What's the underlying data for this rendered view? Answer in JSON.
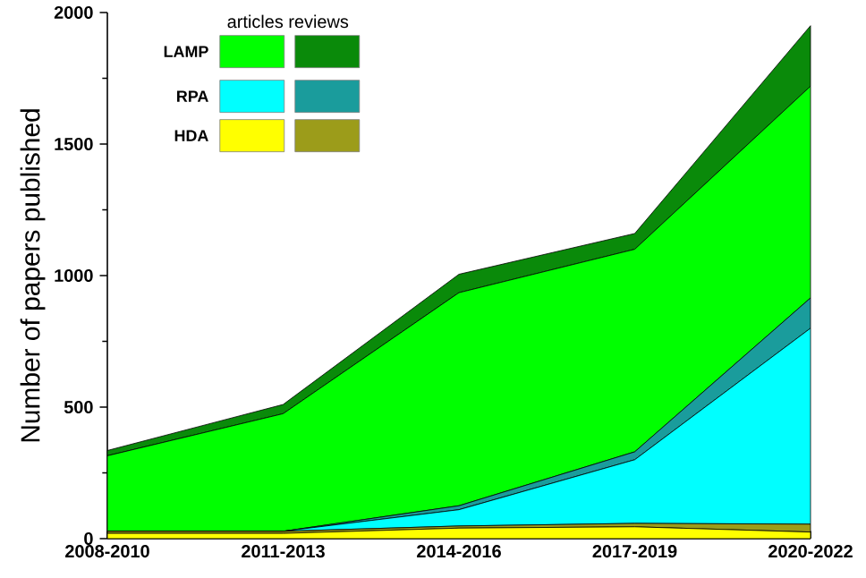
{
  "chart_data": {
    "type": "area",
    "stacked": true,
    "ylabel": "Number of papers published",
    "legend_title": "articles reviews",
    "legend": "top left",
    "categories": [
      "2008-2010",
      "2011-2013",
      "2014-2016",
      "2017-2019",
      "2020-2022"
    ],
    "ylim": [
      0,
      2000
    ],
    "yticks": [
      0,
      500,
      1000,
      1500,
      2000
    ],
    "grid": false,
    "series": [
      {
        "name": "HDA",
        "color": "#ffff00",
        "values": [
          20,
          20,
          40,
          45,
          25
        ]
      },
      {
        "color": "#9c9c1a",
        "values": [
          8,
          8,
          8,
          13,
          30
        ]
      },
      {
        "name": "RPA",
        "color": "#00ffff",
        "values": [
          0,
          0,
          62,
          242,
          745
        ]
      },
      {
        "color": "#1a9c9c",
        "values": [
          0,
          0,
          15,
          30,
          115
        ]
      },
      {
        "name": "LAMP",
        "color": "#00ff00",
        "values": [
          287,
          447,
          810,
          770,
          805
        ]
      },
      {
        "color": "#0a8a0a",
        "values": [
          20,
          35,
          70,
          60,
          230
        ]
      }
    ]
  }
}
